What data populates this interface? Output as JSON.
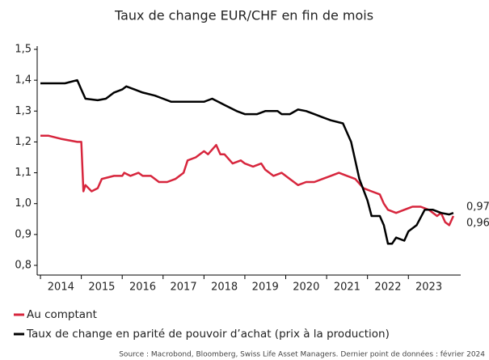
{
  "chart_data": {
    "type": "line",
    "title": "Taux de change EUR/CHF en fin de mois",
    "source": "Source : Macrobond, Bloomberg, Swiss Life Asset Managers. Dernier point de données : février 2024",
    "xlim": [
      2013.92,
      2024.28
    ],
    "xticks": [
      {
        "value": 2014.5,
        "label": "2014"
      },
      {
        "value": 2015.5,
        "label": "2015"
      },
      {
        "value": 2016.5,
        "label": "2016"
      },
      {
        "value": 2017.5,
        "label": "2017"
      },
      {
        "value": 2018.5,
        "label": "2018"
      },
      {
        "value": 2019.5,
        "label": "2019"
      },
      {
        "value": 2020.5,
        "label": "2020"
      },
      {
        "value": 2021.5,
        "label": "2021"
      },
      {
        "value": 2022.5,
        "label": "2022"
      },
      {
        "value": 2023.5,
        "label": "2023"
      }
    ],
    "ylim": [
      0.8,
      1.5
    ],
    "yticks": [
      {
        "value": 0.8,
        "label": "0,8"
      },
      {
        "value": 0.9,
        "label": "0,9"
      },
      {
        "value": 1.0,
        "label": "1,0"
      },
      {
        "value": 1.1,
        "label": "1,1"
      },
      {
        "value": 1.2,
        "label": "1,2"
      },
      {
        "value": 1.3,
        "label": "1,3"
      },
      {
        "value": 1.4,
        "label": "1,4"
      },
      {
        "value": 1.5,
        "label": "1,5"
      }
    ],
    "series": [
      {
        "name": "Au comptant",
        "color": "#d7263d",
        "end_label": "0,96",
        "x": [
          2014.0,
          2014.2,
          2014.5,
          2014.9,
          2015.0,
          2015.05,
          2015.1,
          2015.25,
          2015.4,
          2015.5,
          2015.8,
          2016.0,
          2016.05,
          2016.2,
          2016.4,
          2016.5,
          2016.7,
          2016.9,
          2017.1,
          2017.3,
          2017.5,
          2017.6,
          2017.8,
          2018.0,
          2018.1,
          2018.3,
          2018.4,
          2018.5,
          2018.7,
          2018.9,
          2019.0,
          2019.2,
          2019.4,
          2019.5,
          2019.7,
          2019.9,
          2020.1,
          2020.3,
          2020.5,
          2020.7,
          2020.9,
          2021.1,
          2021.3,
          2021.5,
          2021.7,
          2021.9,
          2022.1,
          2022.3,
          2022.4,
          2022.5,
          2022.7,
          2022.9,
          2023.1,
          2023.3,
          2023.5,
          2023.7,
          2023.8,
          2023.9,
          2024.0,
          2024.1
        ],
        "values": [
          1.22,
          1.22,
          1.21,
          1.2,
          1.2,
          1.04,
          1.06,
          1.04,
          1.05,
          1.08,
          1.09,
          1.09,
          1.1,
          1.09,
          1.1,
          1.09,
          1.09,
          1.07,
          1.07,
          1.08,
          1.1,
          1.14,
          1.15,
          1.17,
          1.16,
          1.19,
          1.16,
          1.16,
          1.13,
          1.14,
          1.13,
          1.12,
          1.13,
          1.11,
          1.09,
          1.1,
          1.08,
          1.06,
          1.07,
          1.07,
          1.08,
          1.09,
          1.1,
          1.09,
          1.08,
          1.05,
          1.04,
          1.03,
          1.0,
          0.98,
          0.97,
          0.98,
          0.99,
          0.99,
          0.98,
          0.96,
          0.97,
          0.94,
          0.93,
          0.96
        ]
      },
      {
        "name": "Taux de change en parité de pouvoir d’achat (prix à la production)",
        "color": "#000000",
        "end_label": "0,97",
        "x": [
          2014.0,
          2014.3,
          2014.6,
          2014.9,
          2015.0,
          2015.1,
          2015.4,
          2015.6,
          2015.8,
          2016.0,
          2016.1,
          2016.3,
          2016.5,
          2016.8,
          2017.0,
          2017.2,
          2017.5,
          2017.8,
          2018.0,
          2018.2,
          2018.5,
          2018.8,
          2019.0,
          2019.3,
          2019.5,
          2019.8,
          2019.9,
          2020.1,
          2020.3,
          2020.5,
          2020.7,
          2020.9,
          2021.1,
          2021.4,
          2021.6,
          2021.8,
          2022.0,
          2022.1,
          2022.3,
          2022.4,
          2022.5,
          2022.6,
          2022.7,
          2022.9,
          2023.0,
          2023.2,
          2023.4,
          2023.6,
          2023.8,
          2024.0,
          2024.1
        ],
        "values": [
          1.39,
          1.39,
          1.39,
          1.4,
          1.37,
          1.34,
          1.335,
          1.34,
          1.36,
          1.37,
          1.38,
          1.37,
          1.36,
          1.35,
          1.34,
          1.33,
          1.33,
          1.33,
          1.33,
          1.34,
          1.32,
          1.3,
          1.29,
          1.29,
          1.3,
          1.3,
          1.29,
          1.29,
          1.305,
          1.3,
          1.29,
          1.28,
          1.27,
          1.26,
          1.2,
          1.08,
          1.01,
          0.96,
          0.96,
          0.93,
          0.87,
          0.87,
          0.89,
          0.88,
          0.91,
          0.93,
          0.98,
          0.98,
          0.97,
          0.965,
          0.97
        ]
      }
    ]
  }
}
